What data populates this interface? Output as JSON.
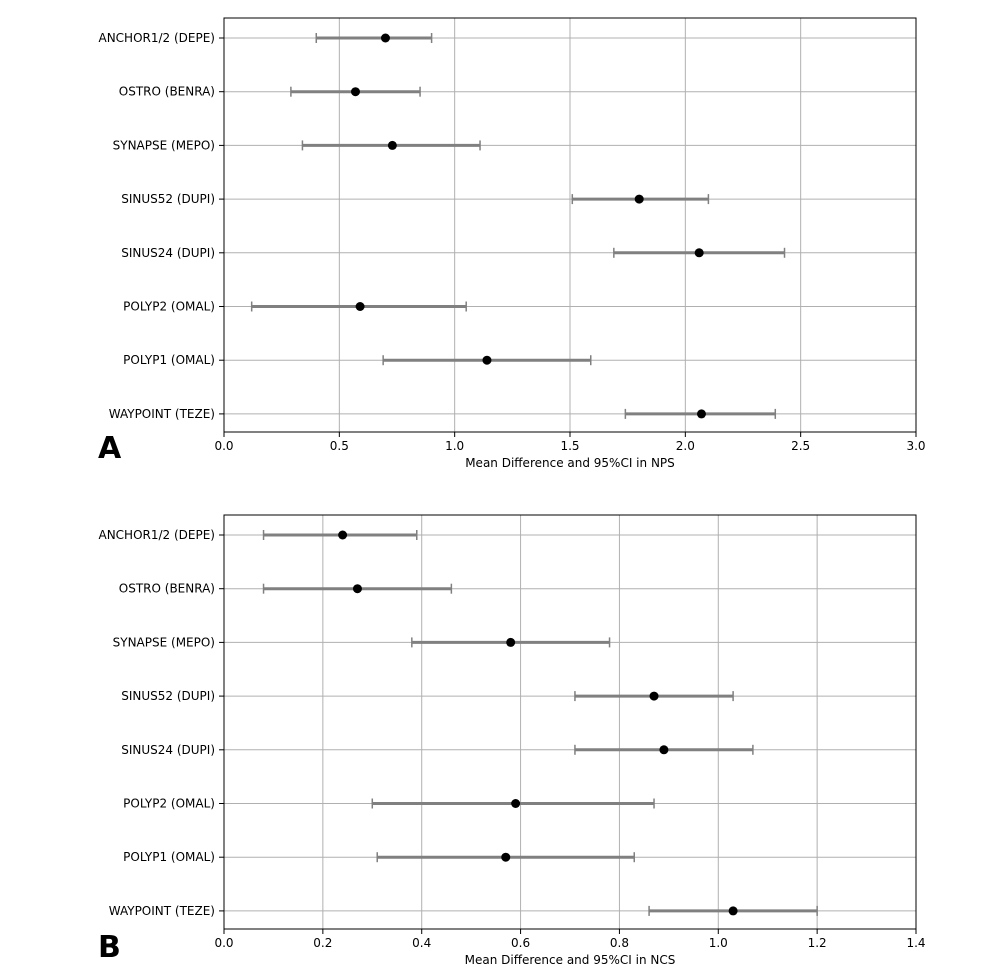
{
  "chart_data": [
    {
      "type": "scatter",
      "panel": "A",
      "categories": [
        "ANCHOR1/2 (DEPE)",
        "OSTRO (BENRA)",
        "SYNAPSE (MEPO)",
        "SINUS52 (DUPI)",
        "SINUS24 (DUPI)",
        "POLYP2 (OMAL)",
        "POLYP1 (OMAL)",
        "WAYPOINT (TEZE)"
      ],
      "means": [
        0.7,
        0.57,
        0.73,
        1.8,
        2.06,
        0.59,
        1.14,
        2.07
      ],
      "lower": [
        0.4,
        0.29,
        0.34,
        1.51,
        1.69,
        0.12,
        0.69,
        1.74
      ],
      "upper": [
        0.9,
        0.85,
        1.11,
        2.1,
        2.43,
        1.05,
        1.59,
        2.39
      ],
      "xlabel": "Mean Difference and 95%CI in NPS",
      "xlim": [
        0.0,
        3.0
      ],
      "xticks": [
        "0.0",
        "0.5",
        "1.0",
        "1.5",
        "2.0",
        "2.5",
        "3.0"
      ],
      "grid": true
    },
    {
      "type": "scatter",
      "panel": "B",
      "categories": [
        "ANCHOR1/2 (DEPE)",
        "OSTRO (BENRA)",
        "SYNAPSE (MEPO)",
        "SINUS52 (DUPI)",
        "SINUS24 (DUPI)",
        "POLYP2 (OMAL)",
        "POLYP1 (OMAL)",
        "WAYPOINT (TEZE)"
      ],
      "means": [
        0.24,
        0.27,
        0.58,
        0.87,
        0.89,
        0.59,
        0.57,
        1.03
      ],
      "lower": [
        0.08,
        0.08,
        0.38,
        0.71,
        0.71,
        0.3,
        0.31,
        0.86
      ],
      "upper": [
        0.39,
        0.46,
        0.78,
        1.03,
        1.07,
        0.87,
        0.83,
        1.2
      ],
      "xlabel": "Mean Difference and 95%CI in NCS",
      "xlim": [
        0.0,
        1.4
      ],
      "xticks": [
        "0.0",
        "0.2",
        "0.4",
        "0.6",
        "0.8",
        "1.0",
        "1.2",
        "1.4"
      ],
      "grid": true
    }
  ]
}
